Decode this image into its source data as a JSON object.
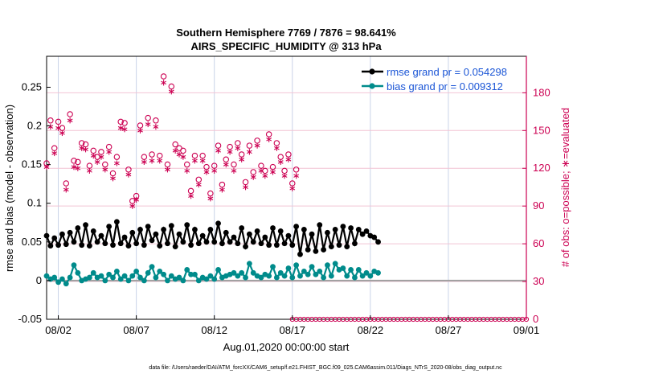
{
  "chart_data": {
    "type": "line",
    "title": [
      "Southern Hemisphere 7769 / 7876 = 98.641%",
      "AIRS_SPECIFIC_HUMIDITY @ 313 hPa"
    ],
    "xlabel": "Aug.01,2020 00:00:00 start",
    "ylabel_left": "rmse and bias (model - observation)",
    "ylabel_right": "# of obs: o=possible; ∗=evaluated",
    "footnote": "data file: /Users/raeder/DAI/ATM_forcXX/CAM6_setup/f.e21.FHIST_BGC.f09_025.CAM6assim.011/Diags_NTrS_2020-08/obs_diag_output.nc",
    "x_ticks": [
      {
        "v": 1,
        "label": "08/02"
      },
      {
        "v": 6,
        "label": "08/07"
      },
      {
        "v": 11,
        "label": "08/12"
      },
      {
        "v": 16,
        "label": "08/17"
      },
      {
        "v": 21,
        "label": "08/22"
      },
      {
        "v": 26,
        "label": "08/27"
      },
      {
        "v": 31,
        "label": "09/01"
      }
    ],
    "xlim": [
      0.25,
      31
    ],
    "ylim_left": [
      -0.05,
      0.29
    ],
    "ylim_right": [
      0,
      209
    ],
    "y_ticks_left": [
      {
        "v": -0.05,
        "label": "-0.05"
      },
      {
        "v": 0,
        "label": "0"
      },
      {
        "v": 0.05,
        "label": "0.05"
      },
      {
        "v": 0.1,
        "label": "0.1"
      },
      {
        "v": 0.15,
        "label": "0.15"
      },
      {
        "v": 0.2,
        "label": "0.2"
      },
      {
        "v": 0.25,
        "label": "0.25"
      }
    ],
    "y_ticks_right": [
      {
        "v": 0,
        "label": "0"
      },
      {
        "v": 30,
        "label": "30"
      },
      {
        "v": 60,
        "label": "60"
      },
      {
        "v": 90,
        "label": "90"
      },
      {
        "v": 120,
        "label": "120"
      },
      {
        "v": 150,
        "label": "150"
      },
      {
        "v": 180,
        "label": "180"
      }
    ],
    "grid": true,
    "legend_position": "top-right",
    "series": [
      {
        "name": "rmse grand pr = 0.054298",
        "color": "#000000",
        "marker": "filled-circle",
        "axis": "left",
        "values": [
          0.058,
          0.045,
          0.055,
          0.046,
          0.06,
          0.047,
          0.062,
          0.05,
          0.068,
          0.046,
          0.072,
          0.045,
          0.064,
          0.05,
          0.058,
          0.048,
          0.07,
          0.046,
          0.076,
          0.048,
          0.056,
          0.045,
          0.062,
          0.048,
          0.066,
          0.046,
          0.07,
          0.052,
          0.06,
          0.045,
          0.066,
          0.048,
          0.071,
          0.044,
          0.06,
          0.05,
          0.072,
          0.046,
          0.066,
          0.048,
          0.058,
          0.05,
          0.066,
          0.05,
          0.074,
          0.048,
          0.062,
          0.05,
          0.056,
          0.048,
          0.068,
          0.044,
          0.06,
          0.05,
          0.064,
          0.048,
          0.056,
          0.046,
          0.068,
          0.046,
          0.064,
          0.048,
          0.058,
          0.046,
          0.07,
          0.034,
          0.066,
          0.04,
          0.06,
          0.038,
          0.072,
          0.04,
          0.062,
          0.044,
          0.066,
          0.046,
          0.07,
          0.044,
          0.068,
          0.048,
          0.066,
          0.06,
          0.064,
          0.058,
          0.056,
          0.05
        ]
      },
      {
        "name": "bias grand pr = 0.009312",
        "color": "#008b8b",
        "marker": "filled-circle",
        "axis": "left",
        "values": [
          0.006,
          0.002,
          0.004,
          -0.002,
          0.002,
          -0.004,
          0.004,
          0.02,
          0.01,
          0.0,
          0.002,
          0.004,
          0.01,
          0.004,
          0.006,
          0.0,
          0.008,
          0.004,
          0.012,
          0.002,
          0.006,
          0.0,
          0.006,
          0.012,
          0.004,
          0.0,
          0.01,
          0.018,
          0.004,
          0.012,
          0.008,
          0.0,
          0.006,
          0.002,
          0.004,
          0.0,
          0.014,
          0.008,
          0.008,
          0.0,
          0.004,
          0.002,
          0.006,
          0.002,
          0.014,
          0.004,
          0.006,
          0.008,
          0.01,
          0.006,
          0.01,
          0.004,
          0.022,
          0.01,
          0.006,
          0.004,
          0.008,
          0.006,
          0.018,
          0.004,
          0.01,
          0.006,
          0.016,
          0.004,
          0.02,
          0.006,
          0.012,
          0.008,
          0.018,
          0.008,
          0.012,
          0.004,
          0.02,
          0.006,
          0.022,
          0.014,
          0.016,
          0.006,
          0.014,
          0.004,
          0.014,
          0.006,
          0.01,
          0.006,
          0.012,
          0.01
        ]
      },
      {
        "name": "possible",
        "color": "#cc0052",
        "marker": "open-circle",
        "axis": "right",
        "values": [
          124,
          158,
          136,
          157,
          152,
          108,
          163,
          126,
          125,
          140,
          139,
          122,
          134,
          129,
          133,
          123,
          137,
          116,
          129,
          157,
          156,
          119,
          94,
          98,
          154,
          129,
          160,
          131,
          158,
          130,
          193,
          123,
          185,
          139,
          136,
          134,
          123,
          102,
          130,
          111,
          130,
          121,
          100,
          122,
          138,
          107,
          127,
          137,
          123,
          140,
          131,
          109,
          138,
          117,
          142,
          122,
          118,
          147,
          121,
          140,
          129,
          118,
          131,
          108,
          119
        ]
      },
      {
        "name": "evaluated",
        "color": "#cc0052",
        "marker": "asterisk",
        "axis": "right",
        "values": [
          121,
          153,
          132,
          152,
          148,
          103,
          158,
          121,
          120,
          136,
          135,
          118,
          130,
          125,
          129,
          119,
          133,
          112,
          124,
          152,
          151,
          115,
          90,
          95,
          150,
          125,
          155,
          126,
          153,
          126,
          188,
          119,
          181,
          134,
          131,
          129,
          118,
          98,
          126,
          107,
          126,
          117,
          96,
          118,
          134,
          103,
          123,
          133,
          118,
          136,
          127,
          105,
          133,
          113,
          138,
          118,
          114,
          143,
          117,
          136,
          125,
          114,
          127,
          104,
          114
        ]
      },
      {
        "name": "empty-bins",
        "color": "#cc0052",
        "marker": "open-circle",
        "axis": "right",
        "x_start": 16,
        "x_end": 31,
        "value": 0
      }
    ]
  }
}
